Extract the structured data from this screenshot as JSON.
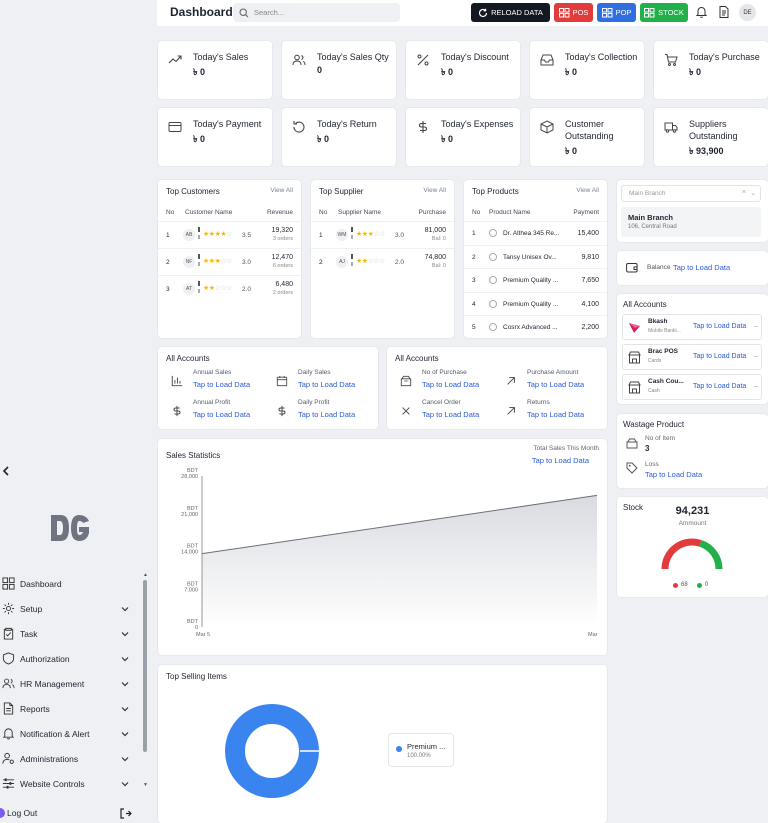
{
  "header": {
    "title": "Dashboard",
    "search_placeholder": "Search...",
    "reload_label": "RELOAD DATA",
    "pos_label": "POS",
    "pop_label": "POP",
    "stock_label": "STOCK",
    "user_initials": "DE"
  },
  "colors": {
    "reload": "#141821",
    "pos": "#e23b3b",
    "pop": "#2f6fe0",
    "stock": "#22b04b",
    "accent": "#2a5bd7",
    "gauge_red": "#e23b3b",
    "gauge_green": "#22b04b",
    "donut": "#3a84f0"
  },
  "stats": [
    {
      "icon": "trending-up-icon",
      "title": "Today's Sales",
      "value": "৳ 0"
    },
    {
      "icon": "users-icon",
      "title": "Today's Sales Qty",
      "value": "0"
    },
    {
      "icon": "percent-icon",
      "title": "Today's Discount",
      "value": "৳ 0"
    },
    {
      "icon": "inbox-icon",
      "title": "Today's Collection",
      "value": "৳ 0"
    },
    {
      "icon": "cart-icon",
      "title": "Today's Purchase",
      "value": "৳ 0"
    },
    {
      "icon": "credit-card-icon",
      "title": "Today's Payment",
      "value": "৳ 0"
    },
    {
      "icon": "rotate-ccw-icon",
      "title": "Today's Return",
      "value": "৳ 0"
    },
    {
      "icon": "dollar-icon",
      "title": "Today's Expenses",
      "value": "৳ 0"
    },
    {
      "icon": "box-icon",
      "title": "Customer Outstanding",
      "value": "৳ 0"
    },
    {
      "icon": "truck-icon",
      "title": "Suppliers Outstanding",
      "value": "৳ 93,900"
    }
  ],
  "top_customers": {
    "title": "Top Customers",
    "view_all": "View All",
    "headers": [
      "No",
      "Customer Name",
      "Revenue"
    ],
    "rows": [
      {
        "no": "1",
        "initials": "AB",
        "rating": 3.5,
        "rating_text": "3.5",
        "amount": "19,320",
        "sub": "3 orders"
      },
      {
        "no": "2",
        "initials": "NF",
        "rating": 3.0,
        "rating_text": "3.0",
        "amount": "12,470",
        "sub": "6 orders"
      },
      {
        "no": "3",
        "initials": "AT",
        "rating": 2.0,
        "rating_text": "2.0",
        "amount": "6,480",
        "sub": "2 orders"
      }
    ]
  },
  "top_supplier": {
    "title": "Top Supplier",
    "view_all": "View All",
    "headers": [
      "No",
      "Supplier Name",
      "Purchase"
    ],
    "rows": [
      {
        "no": "1",
        "initials": "WM",
        "rating": 3.0,
        "rating_text": "3.0",
        "amount": "81,000",
        "sub": "Bal: 0"
      },
      {
        "no": "2",
        "initials": "AJ",
        "rating": 2.0,
        "rating_text": "2.0",
        "amount": "74,800",
        "sub": "Bal: 0"
      }
    ]
  },
  "top_products": {
    "title": "Top Products",
    "view_all": "View All",
    "headers": [
      "No",
      "Product Name",
      "Payment"
    ],
    "rows": [
      {
        "no": "1",
        "name": "Dr. Althea 345 Re...",
        "amount": "15,400"
      },
      {
        "no": "2",
        "name": "Tansy Unisex Ov...",
        "amount": "9,810"
      },
      {
        "no": "3",
        "name": "Premium Quality ...",
        "amount": "7,650"
      },
      {
        "no": "4",
        "name": "Premium Quality ...",
        "amount": "4,100"
      },
      {
        "no": "5",
        "name": "Cosrx Advanced ...",
        "amount": "2,200"
      }
    ]
  },
  "accounts_sales": {
    "title": "All Accounts",
    "items": [
      {
        "icon": "bar-chart-icon",
        "label": "Annual Sales",
        "value": "Tap to Load Data"
      },
      {
        "icon": "calendar-icon",
        "label": "Daily Sales",
        "value": "Tap to Load Data"
      },
      {
        "icon": "dollar-icon",
        "label": "Annual Profit",
        "value": "Tap to Load Data"
      },
      {
        "icon": "dollar-icon",
        "label": "Daily Profit",
        "value": "Tap to Load Data"
      }
    ]
  },
  "accounts_purchase": {
    "title": "All Accounts",
    "items": [
      {
        "icon": "package-icon",
        "label": "No of Purchase",
        "value": "Tap to Load Data"
      },
      {
        "icon": "arrow-up-right-icon",
        "label": "Purchase Amount",
        "value": "Tap to Load Data"
      },
      {
        "icon": "x-icon",
        "label": "Cancel Order",
        "value": "Tap to Load Data"
      },
      {
        "icon": "arrow-up-right-icon",
        "label": "Returns",
        "value": "Tap to Load Data"
      }
    ]
  },
  "branch": {
    "select_placeholder": "Main Branch",
    "name": "Main Branch",
    "address": "106, Central Road",
    "balance_label": "Balance",
    "balance_value": "Tap to Load Data"
  },
  "all_accounts_side": {
    "title": "All Accounts",
    "items": [
      {
        "name": "Bkash",
        "sub": "Mobile Banki...",
        "value": "Tap to Load Data"
      },
      {
        "name": "Brac POS",
        "sub": "Cards",
        "value": "Tap to Load Data"
      },
      {
        "name": "Cash Cou...",
        "sub": "Cash",
        "value": "Tap to Load Data"
      }
    ]
  },
  "wastage": {
    "title": "Wastage Product",
    "items_label": "No of Item",
    "items_value": "3",
    "loss_label": "Loss",
    "loss_value": "Tap to Load Data"
  },
  "stock": {
    "title": "Stock",
    "amount": "94,231",
    "amount_label": "Ammount",
    "red_count": "68",
    "green_count": "0",
    "red_fraction": 0.6
  },
  "sales_stats": {
    "title": "Sales Statistics",
    "total_label": "Total Sales This Month",
    "total_value": "Tap to Load Data"
  },
  "chart_data": {
    "type": "area",
    "title": "Sales Statistics",
    "x": [
      "Mar 5",
      "Mar"
    ],
    "y_ticks": [
      "BDT 28,000",
      "BDT 21,000",
      "BDT 14,000",
      "BDT 7,000",
      "BDT 0"
    ],
    "ylim": [
      0,
      28000
    ],
    "series": [
      {
        "values": [
          13600,
          24400
        ]
      }
    ]
  },
  "top_selling": {
    "title": "Top Selling Items",
    "items": [
      {
        "name": "Premium ...",
        "percent": "100.00%",
        "value": 100
      }
    ]
  },
  "sidebar": {
    "items": [
      {
        "label": "Dashboard",
        "icon": "dashboard-icon",
        "chevron": false
      },
      {
        "label": "Setup",
        "icon": "gear-icon",
        "chevron": true
      },
      {
        "label": "Task",
        "icon": "clipboard-icon",
        "chevron": true
      },
      {
        "label": "Authorization",
        "icon": "shield-icon",
        "chevron": true
      },
      {
        "label": "HR Management",
        "icon": "users-icon",
        "chevron": true
      },
      {
        "label": "Reports",
        "icon": "file-icon",
        "chevron": true
      },
      {
        "label": "Notification & Alert",
        "icon": "bell-icon",
        "chevron": true
      },
      {
        "label": "Administrations",
        "icon": "user-cog-icon",
        "chevron": true
      },
      {
        "label": "Website Controls",
        "icon": "sliders-icon",
        "chevron": true
      }
    ],
    "logout_label": "Log Out"
  }
}
